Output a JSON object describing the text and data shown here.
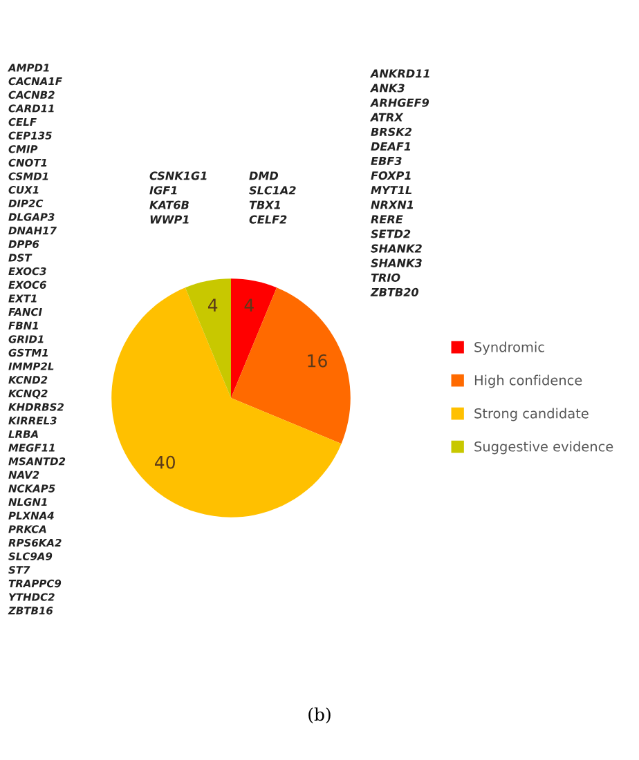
{
  "chart_data": {
    "type": "pie",
    "categories": [
      "Syndromic",
      "High confidence",
      "Strong candidate",
      "Suggestive evidence"
    ],
    "values": [
      4,
      16,
      40,
      4
    ],
    "colors": [
      "#ff0000",
      "#ff6a00",
      "#ffc000",
      "#c8c800"
    ],
    "data_labels": true,
    "legend": "right",
    "annotations": [
      "AMPD1\nCACNA1F\nCACNB2\nCARD11\nCELF\nCEP135\nCMIP\nCNOT1\nCSMD1\nCUX1\nDIP2C\nDLGAP3\nDNAH17\nDPP6\nDST\nEXOC3\nEXOC6\nEXT1\nFANCI\nFBN1\nGRID1\nGSTM1\nIMMP2L\nKCND2\nKCNQ2\nKHDRBS2\nKIRREL3\nLRBA\nMEGF11\nMSANTD2\nNAV2\nNCKAP5\nNLGN1\nPLXNA4\nPRKCA\nRPS6KA2\nSLC9A9\nST7\nTRAPPC9\nYTHDC2\nZBTB16",
      "CSNK1G1\nIGF1\nKAT6B\nWWP1",
      "DMD\nSLC1A2\nTBX1\nCELF2",
      "ANKRD11\nANK3\nARHGEF9\nATRX\nBRSK2\nDEAF1\nEBF3\nFOXP1\nMYT1L\nNRXN1\nRERE\nSETD2\nSHANK2\nSHANK3\nTRIO\nZBTB20",
      "(b)"
    ]
  }
}
